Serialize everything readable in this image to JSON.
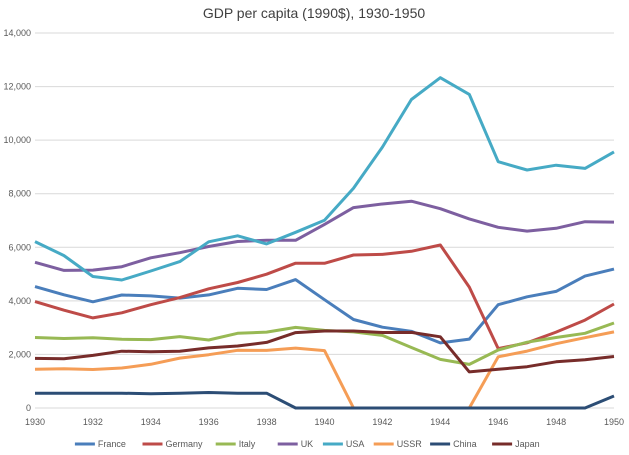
{
  "chart_data": {
    "type": "line",
    "title": "GDP per capita (1990$), 1930-1950",
    "xlabel": "",
    "ylabel": "",
    "ylim": [
      0,
      14000
    ],
    "xlim": [
      1930,
      1950
    ],
    "grid": true,
    "legend_position": "bottom",
    "y_ticks": [
      "0",
      "2,000",
      "4,000",
      "6,000",
      "8,000",
      "10,000",
      "12,000",
      "14,000"
    ],
    "x_ticks": [
      "1930",
      "1932",
      "1934",
      "1936",
      "1938",
      "1940",
      "1942",
      "1944",
      "1946",
      "1948",
      "1950"
    ],
    "x": [
      1930,
      1931,
      1932,
      1933,
      1934,
      1935,
      1936,
      1937,
      1938,
      1939,
      1940,
      1941,
      1942,
      1943,
      1944,
      1945,
      1946,
      1947,
      1948,
      1949,
      1950
    ],
    "series": [
      {
        "name": "France",
        "color": "#4a7ebb",
        "values": [
          4532,
          4228,
          3964,
          4218,
          4186,
          4104,
          4224,
          4469,
          4424,
          4793,
          4042,
          3305,
          3018,
          2863,
          2430,
          2573,
          3857,
          4151,
          4354,
          4924,
          5186
        ]
      },
      {
        "name": "Germany",
        "color": "#be4b48",
        "values": [
          3973,
          3652,
          3362,
          3556,
          3858,
          4120,
          4451,
          4685,
          4994,
          5406,
          5403,
          5711,
          5736,
          5849,
          6084,
          4514,
          2217,
          2436,
          2834,
          3282,
          3881
        ]
      },
      {
        "name": "Italy",
        "color": "#98b954",
        "values": [
          2631,
          2595,
          2619,
          2563,
          2555,
          2664,
          2540,
          2787,
          2833,
          3010,
          2897,
          2841,
          2710,
          2258,
          1815,
          1629,
          2164,
          2457,
          2631,
          2788,
          3172
        ]
      },
      {
        "name": "UK",
        "color": "#7d5fa0",
        "values": [
          5441,
          5138,
          5148,
          5277,
          5608,
          5799,
          6029,
          6215,
          6266,
          6262,
          6856,
          7482,
          7615,
          7720,
          7440,
          7059,
          6746,
          6604,
          6708,
          6954,
          6939
        ]
      },
      {
        "name": "USA",
        "color": "#46aac5",
        "values": [
          6213,
          5691,
          4908,
          4777,
          5114,
          5467,
          6204,
          6430,
          6126,
          6561,
          7010,
          8206,
          9741,
          11518,
          12333,
          11709,
          9197,
          8886,
          9065,
          8944,
          9561
        ]
      },
      {
        "name": "USSR",
        "color": "#f59d56",
        "values": [
          1448,
          1462,
          1439,
          1493,
          1630,
          1864,
          1991,
          2156,
          2150,
          2237,
          2144,
          0,
          0,
          0,
          0,
          0,
          1913,
          2126,
          2402,
          2623,
          2841
        ]
      },
      {
        "name": "China",
        "color": "#2c4d75",
        "values": [
          552,
          552,
          552,
          552,
          530,
          552,
          580,
          552,
          552,
          0,
          0,
          0,
          0,
          0,
          0,
          0,
          0,
          0,
          0,
          0,
          448
        ]
      },
      {
        "name": "Japan",
        "color": "#772c2a",
        "values": [
          1850,
          1837,
          1962,
          2122,
          2098,
          2120,
          2244,
          2315,
          2449,
          2816,
          2874,
          2873,
          2818,
          2822,
          2659,
          1346,
          1444,
          1541,
          1725,
          1800,
          1921
        ]
      }
    ]
  }
}
